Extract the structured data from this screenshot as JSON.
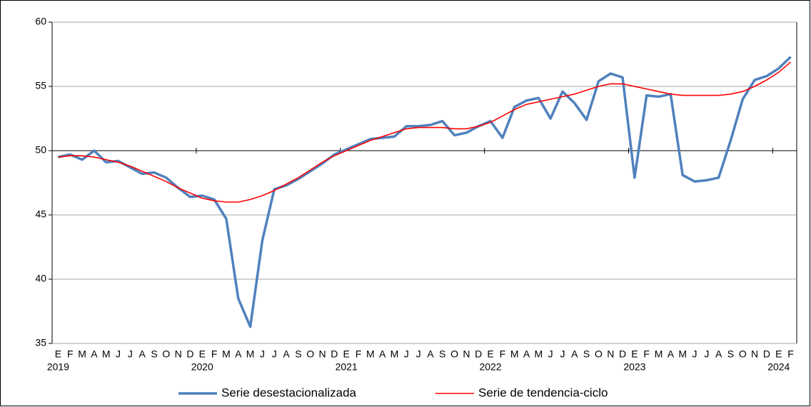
{
  "chart_data": {
    "type": "line",
    "categories": [
      "E",
      "F",
      "M",
      "A",
      "M",
      "J",
      "J",
      "A",
      "S",
      "O",
      "N",
      "D",
      "E",
      "F",
      "M",
      "A",
      "M",
      "J",
      "J",
      "A",
      "S",
      "O",
      "N",
      "D",
      "E",
      "F",
      "M",
      "A",
      "M",
      "J",
      "J",
      "A",
      "S",
      "O",
      "N",
      "D",
      "E",
      "F",
      "M",
      "A",
      "M",
      "J",
      "J",
      "A",
      "S",
      "O",
      "N",
      "D",
      "E",
      "F",
      "M",
      "A",
      "M",
      "J",
      "J",
      "A",
      "S",
      "O",
      "N",
      "D",
      "E",
      "F"
    ],
    "years": [
      "2019",
      "2020",
      "2021",
      "2022",
      "2023",
      "2024"
    ],
    "series": [
      {
        "name": "Serie desestacionalizada",
        "color": "#4f81bd",
        "values": [
          49.5,
          49.7,
          49.3,
          50.0,
          49.1,
          49.2,
          48.7,
          48.2,
          48.3,
          47.9,
          47.1,
          46.4,
          46.5,
          46.2,
          44.7,
          38.5,
          36.3,
          43.0,
          47.0,
          47.3,
          47.8,
          48.4,
          49.0,
          49.7,
          50.1,
          50.5,
          50.9,
          51.0,
          51.1,
          51.9,
          51.9,
          52.0,
          52.3,
          51.2,
          51.4,
          51.9,
          52.3,
          51.0,
          53.4,
          53.9,
          54.1,
          52.5,
          54.6,
          53.7,
          52.4,
          55.4,
          56.0,
          55.7,
          47.9,
          54.3,
          54.2,
          54.4,
          48.1,
          47.6,
          47.7,
          47.9,
          50.8,
          54.0,
          55.5,
          55.8,
          56.4,
          57.3
        ]
      },
      {
        "name": "Serie de tendencia-ciclo",
        "color": "#ff0000",
        "values": [
          49.5,
          49.6,
          49.6,
          49.5,
          49.3,
          49.1,
          48.8,
          48.4,
          48.0,
          47.6,
          47.1,
          46.7,
          46.3,
          46.1,
          46.0,
          46.0,
          46.2,
          46.5,
          46.9,
          47.4,
          47.9,
          48.5,
          49.1,
          49.6,
          50.0,
          50.4,
          50.8,
          51.1,
          51.4,
          51.7,
          51.8,
          51.8,
          51.8,
          51.7,
          51.7,
          51.9,
          52.2,
          52.7,
          53.2,
          53.6,
          53.8,
          54.0,
          54.2,
          54.4,
          54.7,
          55.0,
          55.2,
          55.2,
          55.0,
          54.8,
          54.6,
          54.4,
          54.3,
          54.3,
          54.3,
          54.3,
          54.4,
          54.6,
          55.0,
          55.5,
          56.1,
          56.9
        ]
      }
    ],
    "ylim": [
      35,
      60
    ],
    "yticks": [
      35,
      40,
      45,
      50,
      55,
      60
    ],
    "xaxis_crosses": 50,
    "grid": true
  }
}
